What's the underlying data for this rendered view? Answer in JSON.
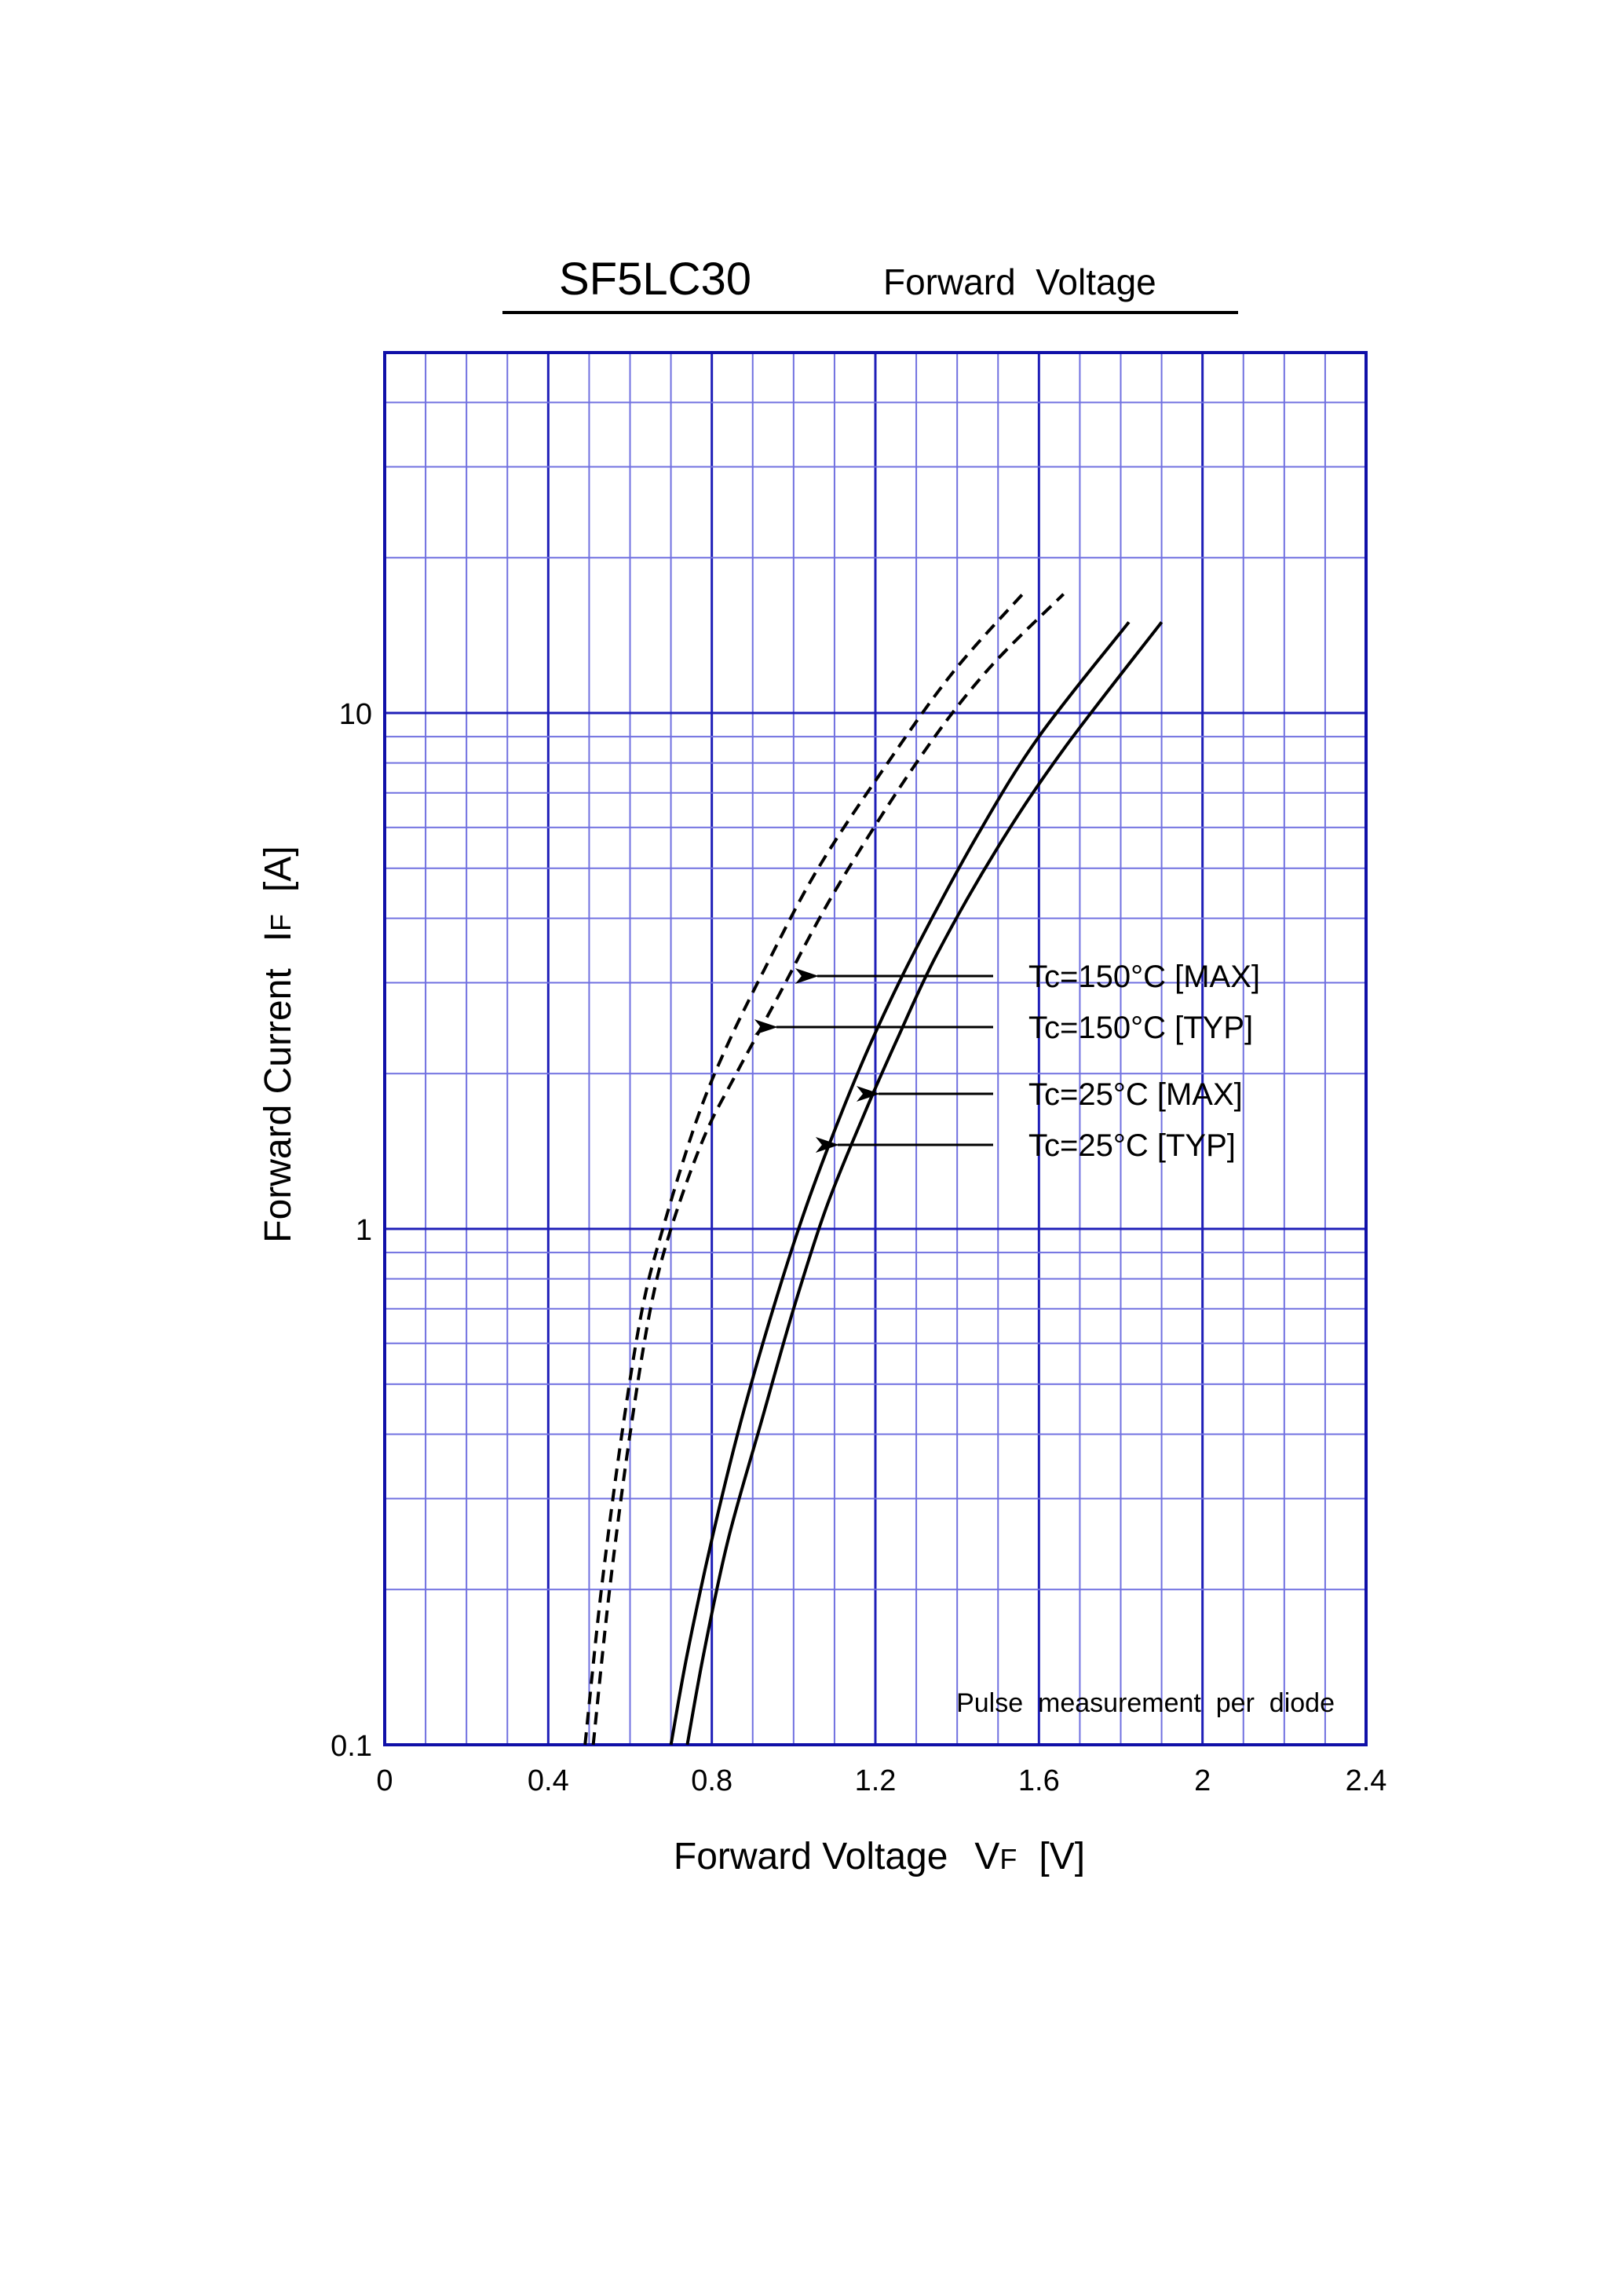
{
  "chart_data": {
    "type": "line",
    "title": "SF5LC30",
    "subtitle": "Forward  Voltage",
    "xlabel": "Forward Voltage",
    "xlabel_symbol": "V",
    "xlabel_subscript": "F",
    "xlabel_unit": "[V]",
    "ylabel": "Forward Current",
    "ylabel_symbol": "I",
    "ylabel_subscript": "F",
    "ylabel_unit": "[A]",
    "xlim": [
      0,
      2.4
    ],
    "ylim": [
      0.1,
      50
    ],
    "yscale": "log",
    "grid": true,
    "x_ticks": [
      {
        "value": 0,
        "label": "0"
      },
      {
        "value": 0.4,
        "label": "0.4"
      },
      {
        "value": 0.8,
        "label": "0.8"
      },
      {
        "value": 1.2,
        "label": "1.2"
      },
      {
        "value": 1.6,
        "label": "1.6"
      },
      {
        "value": 2.0,
        "label": "2"
      },
      {
        "value": 2.4,
        "label": "2.4"
      }
    ],
    "y_ticks": [
      {
        "value": 0.1,
        "label": "0.1"
      },
      {
        "value": 1,
        "label": "1"
      },
      {
        "value": 10,
        "label": "10"
      }
    ],
    "annotation": "Pulse  measurement  per  diode",
    "series": [
      {
        "name": "Tc=150°C [MAX]",
        "style": "dashed",
        "points": [
          [
            0.49,
            0.1
          ],
          [
            0.53,
            0.2
          ],
          [
            0.58,
            0.4
          ],
          [
            0.63,
            0.7
          ],
          [
            0.68,
            1.0
          ],
          [
            0.76,
            1.6
          ],
          [
            0.83,
            2.2
          ],
          [
            0.93,
            3.2
          ],
          [
            1.06,
            5.0
          ],
          [
            1.23,
            8.0
          ],
          [
            1.39,
            12.0
          ],
          [
            1.56,
            17.0
          ]
        ],
        "label_anchor": [
          1.05,
          3.0
        ]
      },
      {
        "name": "Tc=150°C [TYP]",
        "style": "dashed",
        "points": [
          [
            0.51,
            0.1
          ],
          [
            0.55,
            0.2
          ],
          [
            0.6,
            0.4
          ],
          [
            0.65,
            0.7
          ],
          [
            0.7,
            1.0
          ],
          [
            0.78,
            1.5
          ],
          [
            0.86,
            2.0
          ],
          [
            0.96,
            2.8
          ],
          [
            1.1,
            4.5
          ],
          [
            1.3,
            8.0
          ],
          [
            1.47,
            12.0
          ],
          [
            1.66,
            17.0
          ]
        ],
        "label_anchor": [
          0.95,
          2.4
        ]
      },
      {
        "name": "Tc=25°C [MAX]",
        "style": "solid",
        "points": [
          [
            0.7,
            0.1
          ],
          [
            0.74,
            0.15
          ],
          [
            0.8,
            0.25
          ],
          [
            0.87,
            0.42
          ],
          [
            0.95,
            0.7
          ],
          [
            1.03,
            1.1
          ],
          [
            1.12,
            1.7
          ],
          [
            1.2,
            2.4
          ],
          [
            1.3,
            3.5
          ],
          [
            1.45,
            5.8
          ],
          [
            1.6,
            9.0
          ],
          [
            1.82,
            15.0
          ]
        ],
        "label_anchor": [
          1.2,
          1.7
        ]
      },
      {
        "name": "Tc=25°C [TYP]",
        "style": "solid",
        "points": [
          [
            0.74,
            0.1
          ],
          [
            0.78,
            0.15
          ],
          [
            0.84,
            0.25
          ],
          [
            0.92,
            0.42
          ],
          [
            1.0,
            0.7
          ],
          [
            1.08,
            1.1
          ],
          [
            1.17,
            1.65
          ],
          [
            1.25,
            2.3
          ],
          [
            1.35,
            3.4
          ],
          [
            1.5,
            5.5
          ],
          [
            1.66,
            8.5
          ],
          [
            1.9,
            15.0
          ]
        ],
        "label_anchor": [
          1.1,
          1.35
        ]
      }
    ],
    "colors": {
      "grid_major": "#1f1fb8",
      "grid_minor": "#7070e0",
      "axis": "#1010a8",
      "curve": "#000000"
    }
  }
}
